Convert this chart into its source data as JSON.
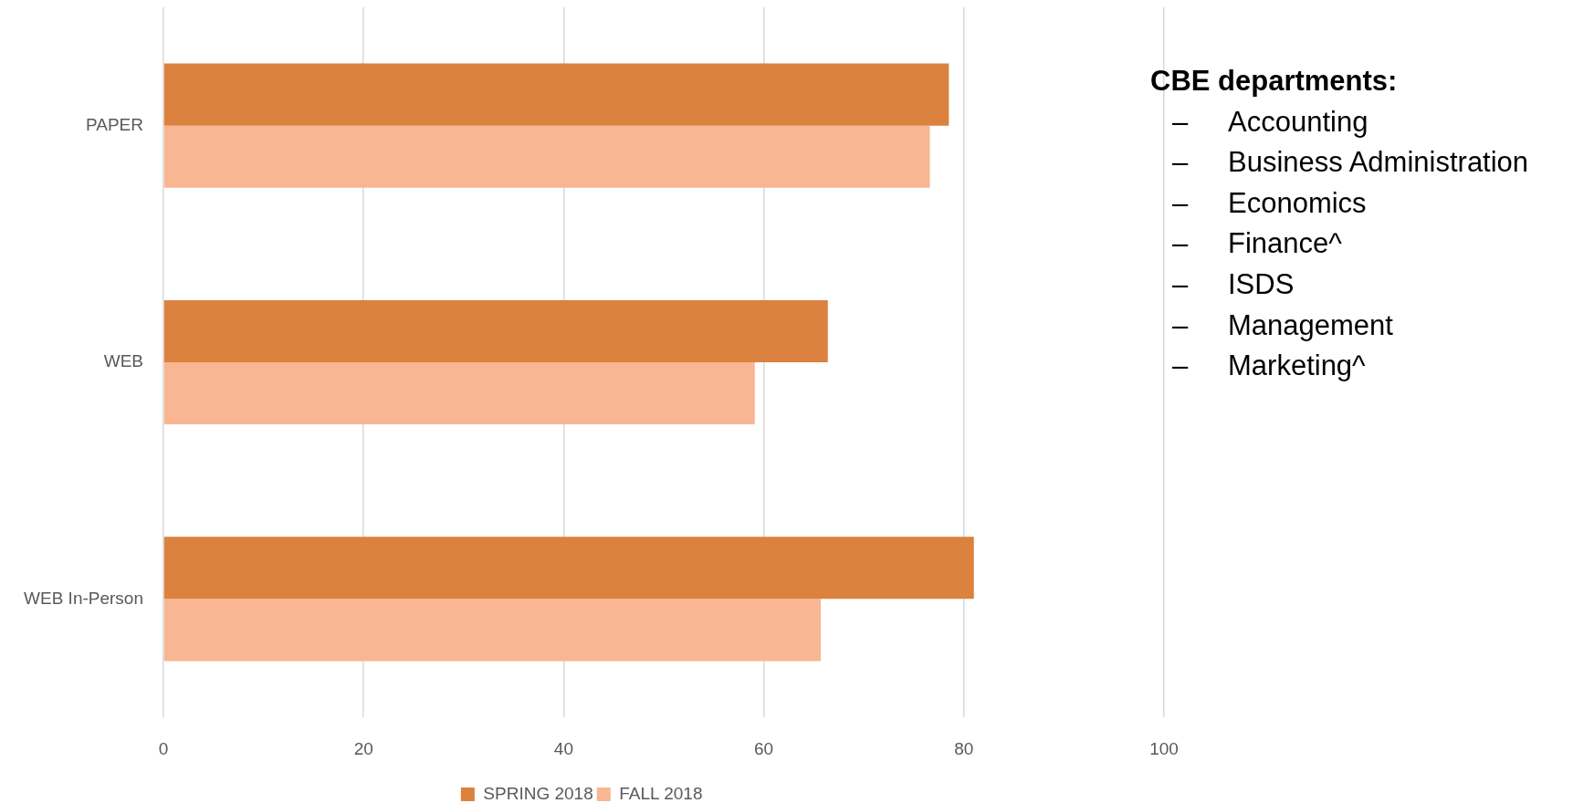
{
  "chart_data": {
    "type": "bar",
    "orientation": "horizontal",
    "categories": [
      "PAPER",
      "WEB",
      "WEB In-Person"
    ],
    "series": [
      {
        "name": "SPRING 2018",
        "color": "#db823e",
        "values": [
          78.5,
          66.4,
          81.0
        ]
      },
      {
        "name": "FALL 2018",
        "color": "#f8b692",
        "values": [
          76.6,
          59.1,
          65.7
        ]
      }
    ],
    "xlim": [
      0,
      100
    ],
    "xticks": [
      0,
      20,
      40,
      60,
      80,
      100
    ],
    "grid": "x",
    "legend": "bottom",
    "annotations": [
      "CBE departments:",
      "–\tAccounting",
      "–\tBusiness Administration",
      "–\tEconomics",
      "–\tFinance^",
      "–\tISDS",
      "–\tManagement",
      "–\tMarketing^"
    ]
  }
}
